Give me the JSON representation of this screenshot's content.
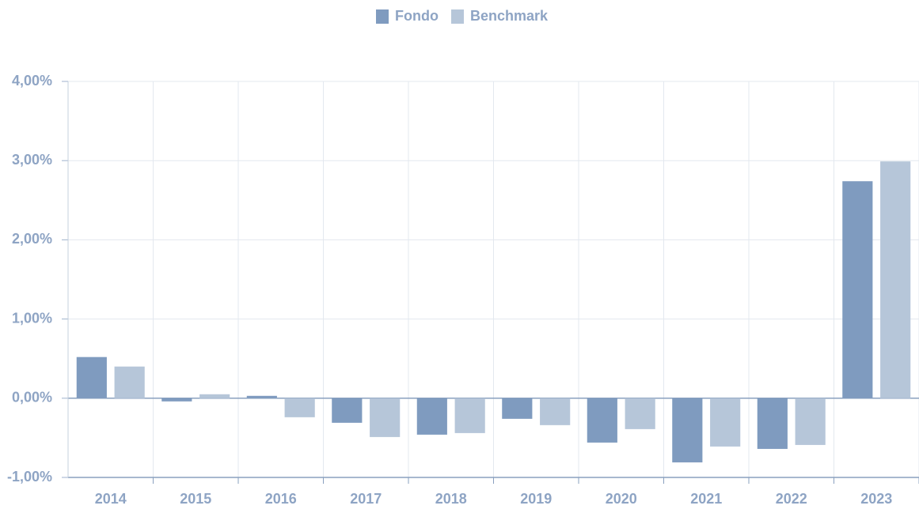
{
  "chart_data": {
    "type": "bar",
    "categories": [
      "2014",
      "2015",
      "2016",
      "2017",
      "2018",
      "2019",
      "2020",
      "2021",
      "2022",
      "2023"
    ],
    "series": [
      {
        "name": "Fondo",
        "color": "#7f9bbf",
        "values": [
          0.52,
          -0.04,
          0.03,
          -0.31,
          -0.46,
          -0.26,
          -0.56,
          -0.81,
          -0.64,
          2.74
        ]
      },
      {
        "name": "Benchmark",
        "color": "#b6c6d9",
        "values": [
          0.4,
          0.05,
          -0.24,
          -0.49,
          -0.44,
          -0.34,
          -0.39,
          -0.61,
          -0.59,
          2.99
        ]
      }
    ],
    "ylim": [
      -1,
      4
    ],
    "yticks": [
      {
        "value": -1,
        "label": "-1,00%"
      },
      {
        "value": 0,
        "label": "0,00%"
      },
      {
        "value": 1,
        "label": "1,00%"
      },
      {
        "value": 2,
        "label": "2,00%"
      },
      {
        "value": 3,
        "label": "3,00%"
      },
      {
        "value": 4,
        "label": "4,00%"
      }
    ],
    "grid": true,
    "legend": "top"
  }
}
